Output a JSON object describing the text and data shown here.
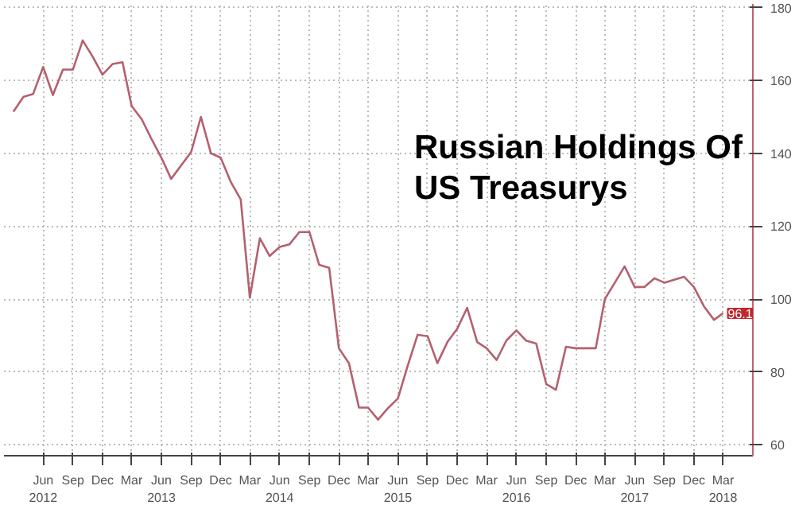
{
  "chart_data": {
    "type": "line",
    "title": "Russian Holdings Of\nUS Treasurys",
    "x": [
      "2012-03",
      "2012-04",
      "2012-05",
      "2012-06",
      "2012-07",
      "2012-08",
      "2012-09",
      "2012-10",
      "2012-11",
      "2012-12",
      "2013-01",
      "2013-02",
      "2013-03",
      "2013-04",
      "2013-05",
      "2013-06",
      "2013-07",
      "2013-08",
      "2013-09",
      "2013-10",
      "2013-11",
      "2013-12",
      "2014-01",
      "2014-02",
      "2014-03",
      "2014-04",
      "2014-05",
      "2014-06",
      "2014-07",
      "2014-08",
      "2014-09",
      "2014-10",
      "2014-11",
      "2014-12",
      "2015-01",
      "2015-02",
      "2015-03",
      "2015-04",
      "2015-05",
      "2015-06",
      "2015-07",
      "2015-08",
      "2015-09",
      "2015-10",
      "2015-11",
      "2015-12",
      "2016-01",
      "2016-02",
      "2016-03",
      "2016-04",
      "2016-05",
      "2016-06",
      "2016-07",
      "2016-08",
      "2016-09",
      "2016-10",
      "2016-11",
      "2016-12",
      "2017-01",
      "2017-02",
      "2017-03",
      "2017-04",
      "2017-05",
      "2017-06",
      "2017-07",
      "2017-08",
      "2017-09",
      "2017-10",
      "2017-11",
      "2017-12",
      "2018-01",
      "2018-02",
      "2018-03"
    ],
    "series": [
      {
        "color": "#b5606e",
        "values": [
          151.4,
          155.5,
          156.3,
          163.7,
          156,
          163,
          163,
          171,
          166.5,
          161.6,
          164.5,
          165,
          153,
          149.4,
          144,
          138.8,
          133,
          136.7,
          140.4,
          150,
          140,
          138.8,
          132.2,
          127.3,
          100.4,
          116.7,
          111.8,
          114.3,
          115,
          118.4,
          118.4,
          109.4,
          108.6,
          86.5,
          82.4,
          70.2,
          70.2,
          66.9,
          70,
          72.7,
          81.6,
          90.2,
          89.8,
          82.4,
          88.2,
          91.8,
          97.6,
          88.2,
          86.5,
          83.3,
          88.6,
          91.4,
          88.6,
          87.8,
          76.7,
          75.1,
          86.9,
          86.5,
          86.5,
          86.5,
          100,
          104.5,
          109,
          103.3,
          103.3,
          105.7,
          104.5,
          105.3,
          106.1,
          103.3,
          98,
          94.3,
          96.1
        ]
      }
    ],
    "annotations": [
      {
        "text": "96.1",
        "x": "2018-03",
        "y": 96.1
      }
    ],
    "xlim": [
      "2012-02",
      "2018-06"
    ],
    "xticks": [
      {
        "value": "2012-06",
        "label": "Jun\n2012"
      },
      {
        "value": "2012-09",
        "label": "Sep"
      },
      {
        "value": "2012-12",
        "label": "Dec"
      },
      {
        "value": "2013-03",
        "label": "Mar"
      },
      {
        "value": "2013-06",
        "label": "Jun\n2013"
      },
      {
        "value": "2013-09",
        "label": "Sep"
      },
      {
        "value": "2013-12",
        "label": "Dec"
      },
      {
        "value": "2014-03",
        "label": "Mar"
      },
      {
        "value": "2014-06",
        "label": "Jun\n2014"
      },
      {
        "value": "2014-09",
        "label": "Sep"
      },
      {
        "value": "2014-12",
        "label": "Dec"
      },
      {
        "value": "2015-03",
        "label": "Mar"
      },
      {
        "value": "2015-06",
        "label": "Jun\n2015"
      },
      {
        "value": "2015-09",
        "label": "Sep"
      },
      {
        "value": "2015-12",
        "label": "Dec"
      },
      {
        "value": "2016-03",
        "label": "Mar"
      },
      {
        "value": "2016-06",
        "label": "Jun\n2016"
      },
      {
        "value": "2016-09",
        "label": "Sep"
      },
      {
        "value": "2016-12",
        "label": "Dec"
      },
      {
        "value": "2017-03",
        "label": "Mar"
      },
      {
        "value": "2017-06",
        "label": "Jun\n2017"
      },
      {
        "value": "2017-09",
        "label": "Sep"
      },
      {
        "value": "2017-12",
        "label": "Dec"
      },
      {
        "value": "2018-03",
        "label": "Mar\n2018"
      }
    ],
    "ylim": [
      57,
      181
    ],
    "yticks": [
      60,
      80,
      100,
      120,
      140,
      160,
      180
    ],
    "grid": true,
    "marker": "none",
    "line_style": "solid"
  }
}
